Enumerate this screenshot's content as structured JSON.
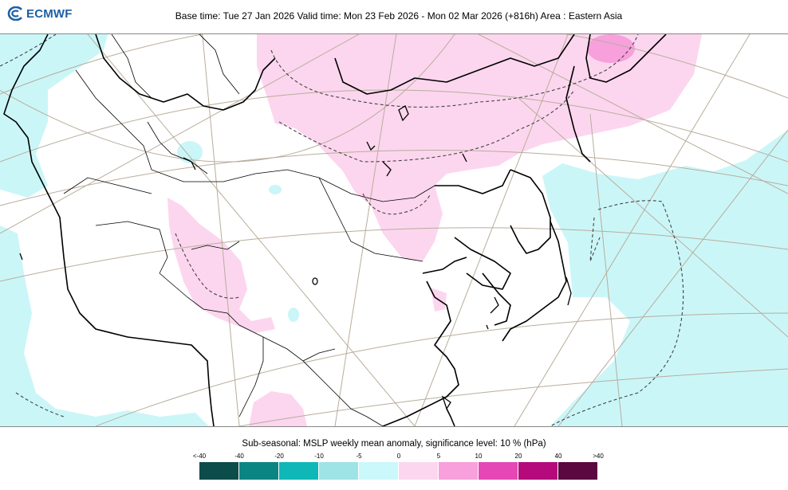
{
  "header": {
    "logo_text": "ECMWF",
    "title": "Base time: Tue 27 Jan 2026 Valid time: Mon 23 Feb 2026 - Mon 02 Mar 2026 (+816h) Area : Eastern Asia"
  },
  "map": {
    "field": "MSLP weekly mean anomaly",
    "colors": {
      "land_line": "#000000",
      "graticule": "#b8ad9c",
      "positive_light": "#fcd6ee",
      "positive_mid": "#f7a0dc",
      "negative_light": "#cbf6f8",
      "significance_line": "#444444"
    }
  },
  "legend": {
    "title": "Sub-seasonal: MSLP weekly mean anomaly, significance level: 10 % (hPa)",
    "ticks": [
      "<-40",
      "-40",
      "-20",
      "-10",
      "-5",
      "0",
      "5",
      "10",
      "20",
      "40",
      ">40"
    ],
    "colors": [
      "#0c4c4a",
      "#0b8584",
      "#0fb7b6",
      "#9ee3e5",
      "#cbf8fa",
      "#fcd6ee",
      "#f7a0dc",
      "#e548b5",
      "#b40a7c",
      "#5b0740"
    ]
  }
}
